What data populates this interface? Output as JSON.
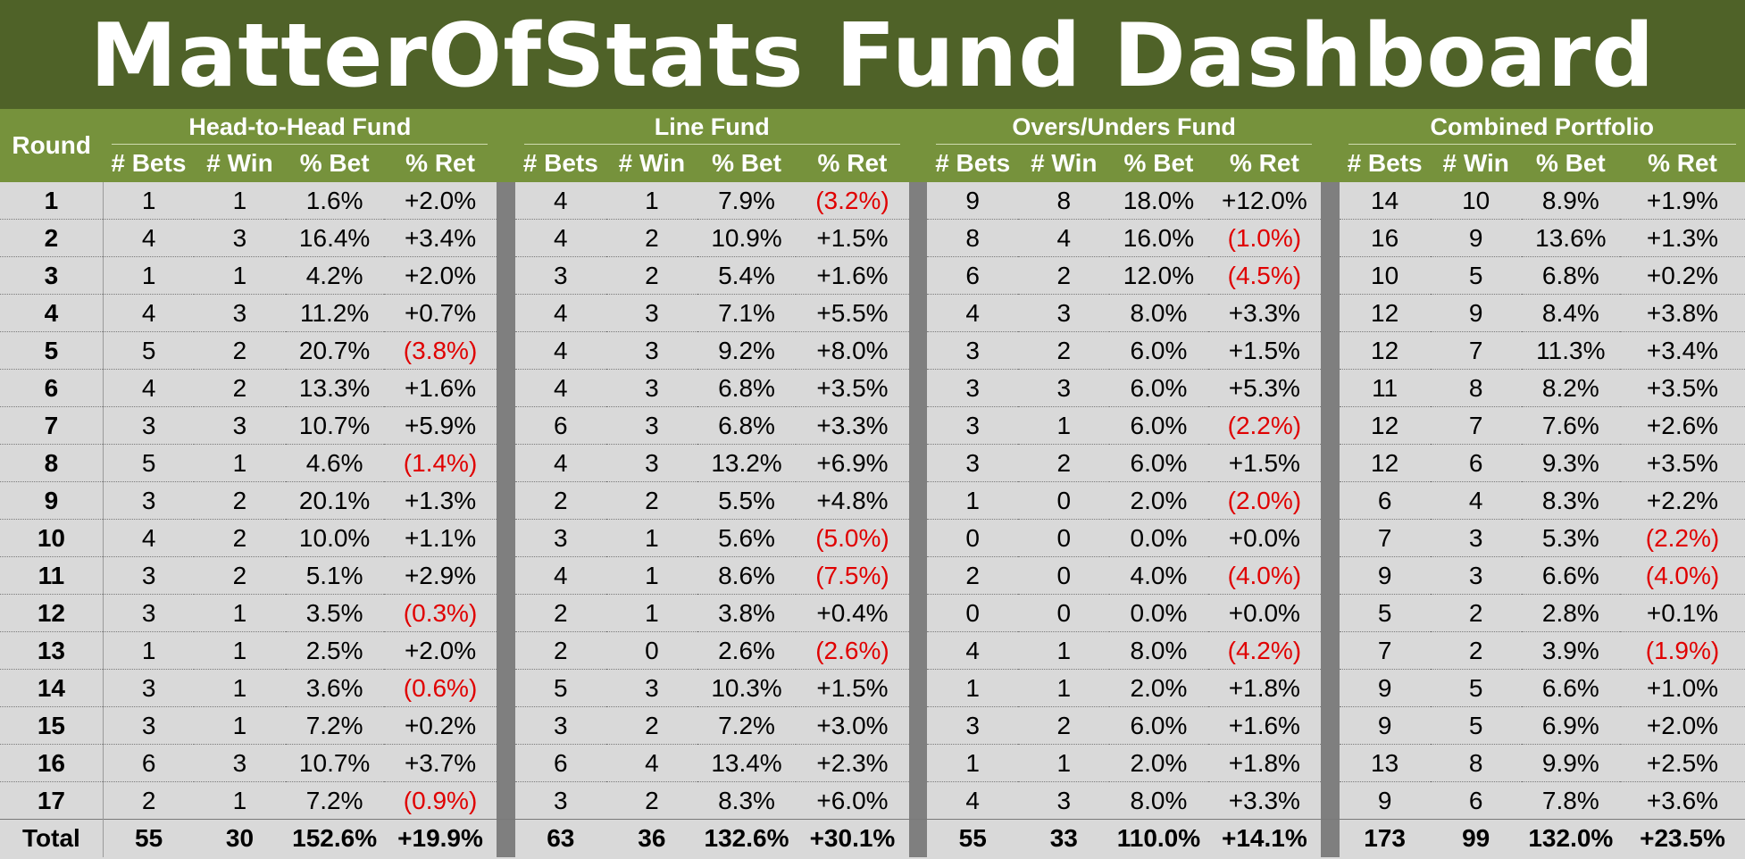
{
  "title": "MatterOfStats Fund Dashboard",
  "round_header": "Round",
  "groups": [
    "Head-to-Head Fund",
    "Line Fund",
    "Overs/Unders Fund",
    "Combined Portfolio"
  ],
  "columns": [
    "# Bets",
    "# Win",
    "% Bet",
    "% Ret"
  ],
  "colors": {
    "title_bg": "#4f6228",
    "header_bg": "#76923c",
    "body_bg": "#d9d9d9",
    "separator": "#7f7f7f",
    "negative": "#e00000"
  },
  "rows": [
    [
      "1",
      "1",
      "1",
      "1.6%",
      "+2.0%",
      "4",
      "1",
      "7.9%",
      "(3.2%)",
      "9",
      "8",
      "18.0%",
      "+12.0%",
      "14",
      "10",
      "8.9%",
      "+1.9%"
    ],
    [
      "2",
      "4",
      "3",
      "16.4%",
      "+3.4%",
      "4",
      "2",
      "10.9%",
      "+1.5%",
      "8",
      "4",
      "16.0%",
      "(1.0%)",
      "16",
      "9",
      "13.6%",
      "+1.3%"
    ],
    [
      "3",
      "1",
      "1",
      "4.2%",
      "+2.0%",
      "3",
      "2",
      "5.4%",
      "+1.6%",
      "6",
      "2",
      "12.0%",
      "(4.5%)",
      "10",
      "5",
      "6.8%",
      "+0.2%"
    ],
    [
      "4",
      "4",
      "3",
      "11.2%",
      "+0.7%",
      "4",
      "3",
      "7.1%",
      "+5.5%",
      "4",
      "3",
      "8.0%",
      "+3.3%",
      "12",
      "9",
      "8.4%",
      "+3.8%"
    ],
    [
      "5",
      "5",
      "2",
      "20.7%",
      "(3.8%)",
      "4",
      "3",
      "9.2%",
      "+8.0%",
      "3",
      "2",
      "6.0%",
      "+1.5%",
      "12",
      "7",
      "11.3%",
      "+3.4%"
    ],
    [
      "6",
      "4",
      "2",
      "13.3%",
      "+1.6%",
      "4",
      "3",
      "6.8%",
      "+3.5%",
      "3",
      "3",
      "6.0%",
      "+5.3%",
      "11",
      "8",
      "8.2%",
      "+3.5%"
    ],
    [
      "7",
      "3",
      "3",
      "10.7%",
      "+5.9%",
      "6",
      "3",
      "6.8%",
      "+3.3%",
      "3",
      "1",
      "6.0%",
      "(2.2%)",
      "12",
      "7",
      "7.6%",
      "+2.6%"
    ],
    [
      "8",
      "5",
      "1",
      "4.6%",
      "(1.4%)",
      "4",
      "3",
      "13.2%",
      "+6.9%",
      "3",
      "2",
      "6.0%",
      "+1.5%",
      "12",
      "6",
      "9.3%",
      "+3.5%"
    ],
    [
      "9",
      "3",
      "2",
      "20.1%",
      "+1.3%",
      "2",
      "2",
      "5.5%",
      "+4.8%",
      "1",
      "0",
      "2.0%",
      "(2.0%)",
      "6",
      "4",
      "8.3%",
      "+2.2%"
    ],
    [
      "10",
      "4",
      "2",
      "10.0%",
      "+1.1%",
      "3",
      "1",
      "5.6%",
      "(5.0%)",
      "0",
      "0",
      "0.0%",
      "+0.0%",
      "7",
      "3",
      "5.3%",
      "(2.2%)"
    ],
    [
      "11",
      "3",
      "2",
      "5.1%",
      "+2.9%",
      "4",
      "1",
      "8.6%",
      "(7.5%)",
      "2",
      "0",
      "4.0%",
      "(4.0%)",
      "9",
      "3",
      "6.6%",
      "(4.0%)"
    ],
    [
      "12",
      "3",
      "1",
      "3.5%",
      "(0.3%)",
      "2",
      "1",
      "3.8%",
      "+0.4%",
      "0",
      "0",
      "0.0%",
      "+0.0%",
      "5",
      "2",
      "2.8%",
      "+0.1%"
    ],
    [
      "13",
      "1",
      "1",
      "2.5%",
      "+2.0%",
      "2",
      "0",
      "2.6%",
      "(2.6%)",
      "4",
      "1",
      "8.0%",
      "(4.2%)",
      "7",
      "2",
      "3.9%",
      "(1.9%)"
    ],
    [
      "14",
      "3",
      "1",
      "3.6%",
      "(0.6%)",
      "5",
      "3",
      "10.3%",
      "+1.5%",
      "1",
      "1",
      "2.0%",
      "+1.8%",
      "9",
      "5",
      "6.6%",
      "+1.0%"
    ],
    [
      "15",
      "3",
      "1",
      "7.2%",
      "+0.2%",
      "3",
      "2",
      "7.2%",
      "+3.0%",
      "3",
      "2",
      "6.0%",
      "+1.6%",
      "9",
      "5",
      "6.9%",
      "+2.0%"
    ],
    [
      "16",
      "6",
      "3",
      "10.7%",
      "+3.7%",
      "6",
      "4",
      "13.4%",
      "+2.3%",
      "1",
      "1",
      "2.0%",
      "+1.8%",
      "13",
      "8",
      "9.9%",
      "+2.5%"
    ],
    [
      "17",
      "2",
      "1",
      "7.2%",
      "(0.9%)",
      "3",
      "2",
      "8.3%",
      "+6.0%",
      "4",
      "3",
      "8.0%",
      "+3.3%",
      "9",
      "6",
      "7.8%",
      "+3.6%"
    ]
  ],
  "total": [
    "Total",
    "55",
    "30",
    "152.6%",
    "+19.9%",
    "63",
    "36",
    "132.6%",
    "+30.1%",
    "55",
    "33",
    "110.0%",
    "+14.1%",
    "173",
    "99",
    "132.0%",
    "+23.5%"
  ]
}
